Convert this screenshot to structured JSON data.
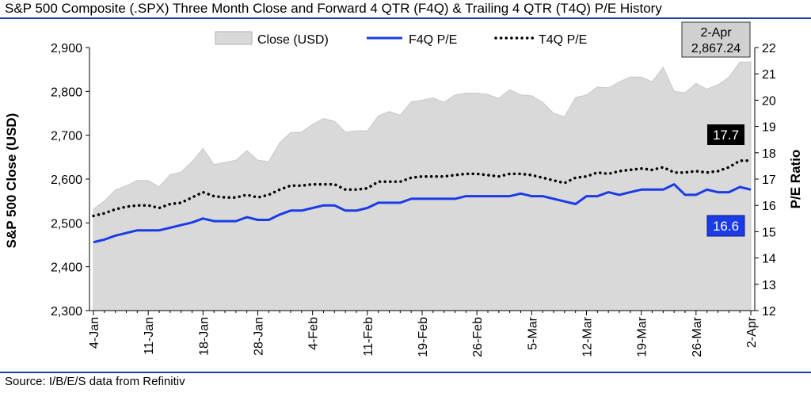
{
  "page": {
    "title": "S&P 500 Composite (.SPX) Three Month Close and Forward 4 QTR (F4Q) & Trailing 4 QTR (T4Q) P/E History",
    "source": "Source: I/B/E/S data from Refinitiv"
  },
  "chart_data": {
    "type": "area",
    "ylabel": "S&P 500 Close (USD)",
    "y2label": "P/E Ratio",
    "ylim": [
      2300,
      2900
    ],
    "yticks": [
      2300,
      2400,
      2500,
      2600,
      2700,
      2800,
      2900
    ],
    "ytick_labels": [
      "2,300",
      "2,400",
      "2,500",
      "2,600",
      "2,700",
      "2,800",
      "2,900"
    ],
    "y2lim": [
      12,
      22
    ],
    "y2ticks": [
      12,
      13,
      14,
      15,
      16,
      17,
      18,
      19,
      20,
      21,
      22
    ],
    "x_tick_labels": [
      {
        "label": "4-Jan",
        "index": 0
      },
      {
        "label": "11-Jan",
        "index": 5
      },
      {
        "label": "18-Jan",
        "index": 10
      },
      {
        "label": "28-Jan",
        "index": 15
      },
      {
        "label": "4-Feb",
        "index": 20
      },
      {
        "label": "11-Feb",
        "index": 25
      },
      {
        "label": "19-Feb",
        "index": 30
      },
      {
        "label": "26-Feb",
        "index": 35
      },
      {
        "label": "5-Mar",
        "index": 40
      },
      {
        "label": "12-Mar",
        "index": 45
      },
      {
        "label": "19-Mar",
        "index": 50
      },
      {
        "label": "26-Mar",
        "index": 55
      },
      {
        "label": "2-Apr",
        "index": 60
      }
    ],
    "grid": false,
    "legend_position": "top",
    "series": [
      {
        "name": "Close (USD)",
        "type": "area",
        "axis": "left",
        "color": "#d9d9d9",
        "values": [
          2532,
          2550,
          2575,
          2585,
          2597,
          2597,
          2582,
          2610,
          2616,
          2640,
          2670,
          2633,
          2638,
          2643,
          2665,
          2643,
          2640,
          2683,
          2706,
          2707,
          2725,
          2738,
          2732,
          2707,
          2710,
          2710,
          2744,
          2754,
          2746,
          2776,
          2780,
          2785,
          2775,
          2792,
          2796,
          2796,
          2793,
          2784,
          2804,
          2792,
          2790,
          2775,
          2750,
          2742,
          2786,
          2792,
          2810,
          2808,
          2822,
          2833,
          2833,
          2822,
          2855,
          2800,
          2797,
          2818,
          2805,
          2815,
          2832,
          2867,
          2867
        ]
      },
      {
        "name": "F4Q P/E",
        "type": "line",
        "axis": "right",
        "color": "#1a3be6",
        "values": [
          14.6,
          14.7,
          14.85,
          14.95,
          15.05,
          15.05,
          15.05,
          15.15,
          15.25,
          15.35,
          15.5,
          15.4,
          15.4,
          15.4,
          15.55,
          15.45,
          15.45,
          15.65,
          15.8,
          15.8,
          15.9,
          16.0,
          16.0,
          15.8,
          15.8,
          15.9,
          16.1,
          16.1,
          16.1,
          16.25,
          16.25,
          16.25,
          16.25,
          16.25,
          16.35,
          16.35,
          16.35,
          16.35,
          16.35,
          16.45,
          16.35,
          16.35,
          16.25,
          16.15,
          16.05,
          16.35,
          16.35,
          16.5,
          16.4,
          16.5,
          16.6,
          16.6,
          16.6,
          16.8,
          16.4,
          16.4,
          16.6,
          16.5,
          16.5,
          16.7,
          16.6
        ]
      },
      {
        "name": "T4Q P/E",
        "type": "line",
        "axis": "right",
        "color": "#000000",
        "dash": "dotted",
        "values": [
          15.6,
          15.7,
          15.85,
          15.95,
          16.0,
          16.0,
          15.9,
          16.05,
          16.1,
          16.3,
          16.5,
          16.35,
          16.3,
          16.3,
          16.4,
          16.3,
          16.4,
          16.6,
          16.75,
          16.75,
          16.8,
          16.8,
          16.8,
          16.6,
          16.6,
          16.65,
          16.9,
          16.9,
          16.9,
          17.05,
          17.1,
          17.1,
          17.1,
          17.15,
          17.2,
          17.2,
          17.15,
          17.1,
          17.2,
          17.2,
          17.15,
          17.05,
          16.95,
          16.85,
          17.05,
          17.1,
          17.25,
          17.2,
          17.3,
          17.35,
          17.4,
          17.35,
          17.45,
          17.25,
          17.25,
          17.3,
          17.25,
          17.3,
          17.45,
          17.7,
          17.7
        ]
      }
    ],
    "callouts": [
      {
        "text_lines": [
          "2-Apr",
          "2,867.24"
        ],
        "style": "gray-box"
      },
      {
        "text": "17.7",
        "style": "black-box"
      },
      {
        "text": "16.6",
        "style": "blue-box"
      }
    ]
  }
}
